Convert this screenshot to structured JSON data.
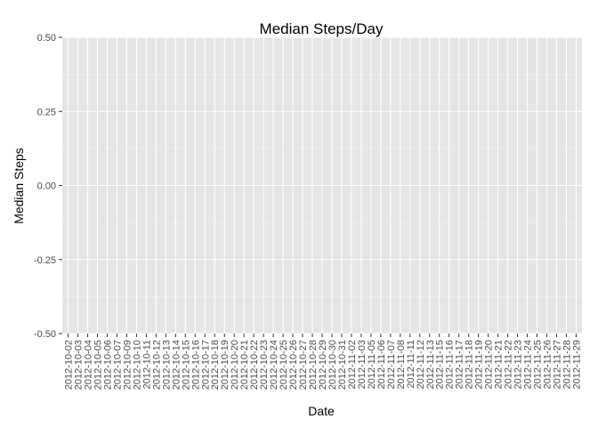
{
  "chart_data": {
    "type": "bar",
    "title": "Median Steps/Day",
    "xlabel": "Date",
    "ylabel": "Median Steps",
    "ylim": [
      -0.5,
      0.5
    ],
    "yticks": [
      "0.50",
      "0.25",
      "0.00",
      "-0.25",
      "-0.50"
    ],
    "ytick_values": [
      0.5,
      0.25,
      0.0,
      -0.25,
      -0.5
    ],
    "grid": true,
    "categories": [
      "2012-10-02",
      "2012-10-03",
      "2012-10-04",
      "2012-10-05",
      "2012-10-06",
      "2012-10-07",
      "2012-10-09",
      "2012-10-10",
      "2012-10-11",
      "2012-10-12",
      "2012-10-13",
      "2012-10-14",
      "2012-10-15",
      "2012-10-16",
      "2012-10-17",
      "2012-10-18",
      "2012-10-19",
      "2012-10-20",
      "2012-10-21",
      "2012-10-22",
      "2012-10-23",
      "2012-10-24",
      "2012-10-25",
      "2012-10-26",
      "2012-10-27",
      "2012-10-28",
      "2012-10-29",
      "2012-10-30",
      "2012-10-31",
      "2012-11-02",
      "2012-11-03",
      "2012-11-05",
      "2012-11-06",
      "2012-11-07",
      "2012-11-08",
      "2012-11-11",
      "2012-11-12",
      "2012-11-13",
      "2012-11-15",
      "2012-11-16",
      "2012-11-17",
      "2012-11-18",
      "2012-11-19",
      "2012-11-20",
      "2012-11-21",
      "2012-11-22",
      "2012-11-23",
      "2012-11-24",
      "2012-11-25",
      "2012-11-26",
      "2012-11-27",
      "2012-11-28",
      "2012-11-29"
    ],
    "values": [
      0,
      0,
      0,
      0,
      0,
      0,
      0,
      0,
      0,
      0,
      0,
      0,
      0,
      0,
      0,
      0,
      0,
      0,
      0,
      0,
      0,
      0,
      0,
      0,
      0,
      0,
      0,
      0,
      0,
      0,
      0,
      0,
      0,
      0,
      0,
      0,
      0,
      0,
      0,
      0,
      0,
      0,
      0,
      0,
      0,
      0,
      0,
      0,
      0,
      0,
      0,
      0,
      0
    ],
    "colors": {
      "panel_background": "#e5e5e5",
      "grid_major": "#ffffff",
      "grid_minor": "#f2f2f2",
      "tick_text": "#4d4d4d",
      "bar_fill": "#595959"
    }
  }
}
